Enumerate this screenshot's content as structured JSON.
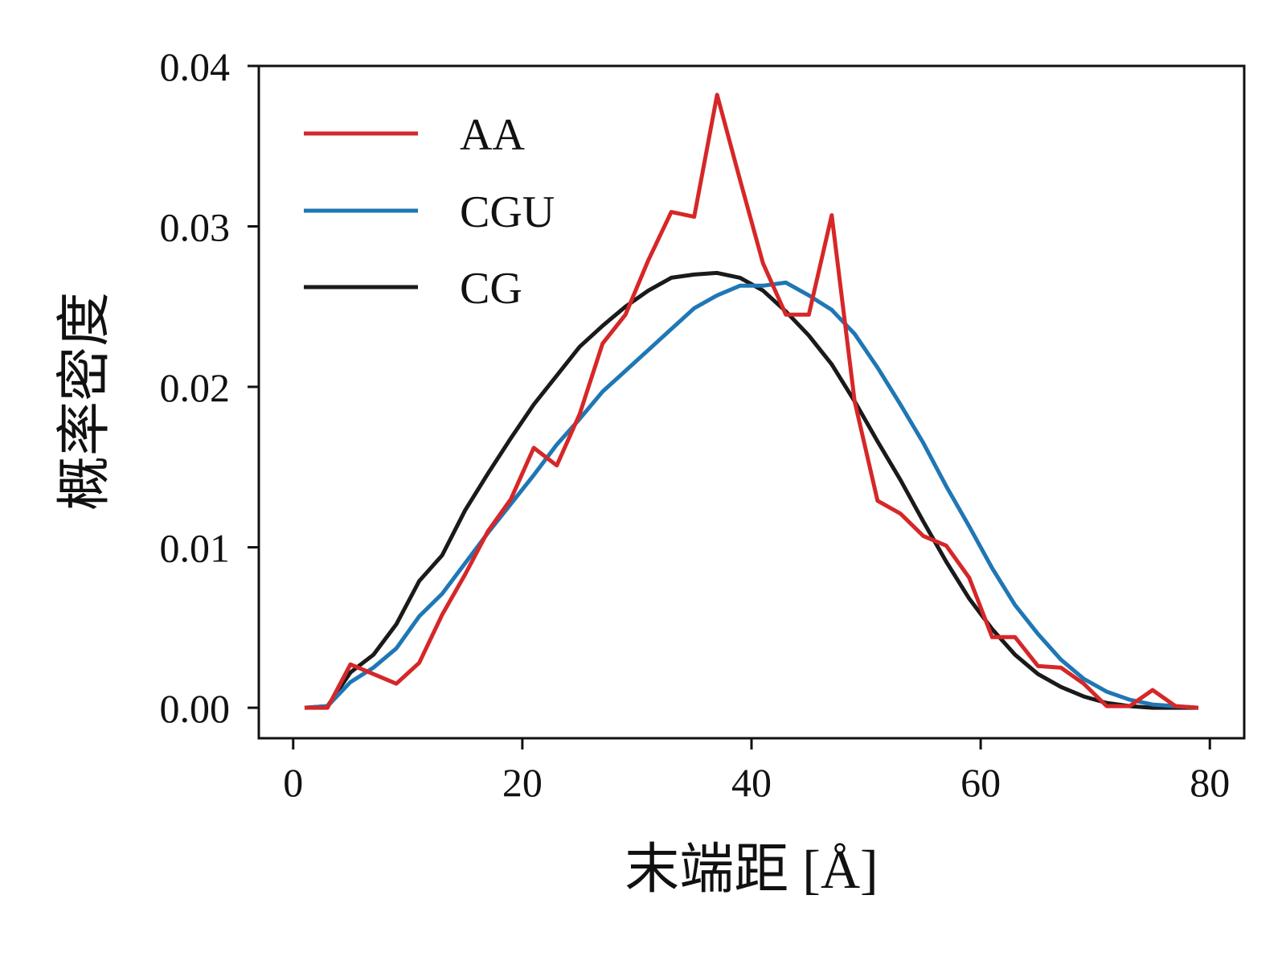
{
  "chart_data": {
    "type": "line",
    "xlabel": "末端距 [Å]",
    "ylabel": "概率密度",
    "xlim": [
      -3,
      83
    ],
    "ylim": [
      -0.0019,
      0.04
    ],
    "x_ticks": [
      0,
      20,
      40,
      60,
      80
    ],
    "x_tick_labels": [
      "0",
      "20",
      "40",
      "60",
      "80"
    ],
    "y_ticks": [
      0.0,
      0.01,
      0.02,
      0.03,
      0.04
    ],
    "y_tick_labels": [
      "0.00",
      "0.01",
      "0.02",
      "0.03",
      "0.04"
    ],
    "grid": false,
    "legend_position": "top-left",
    "series": [
      {
        "name": "AA",
        "color": "#d62728",
        "x": [
          1,
          3,
          5,
          7,
          9,
          11,
          13,
          15,
          17,
          19,
          21,
          23,
          25,
          27,
          29,
          31,
          33,
          35,
          37,
          39,
          41,
          43,
          45,
          47,
          49,
          51,
          53,
          55,
          57,
          59,
          61,
          63,
          65,
          67,
          69,
          71,
          73,
          75,
          77,
          79
        ],
        "values": [
          0.0,
          0.0,
          0.0027,
          0.0021,
          0.0015,
          0.0028,
          0.0058,
          0.0083,
          0.011,
          0.013,
          0.0162,
          0.0151,
          0.0183,
          0.0227,
          0.0245,
          0.0279,
          0.0309,
          0.0306,
          0.0382,
          0.0329,
          0.0277,
          0.0245,
          0.0245,
          0.0307,
          0.0191,
          0.0129,
          0.0121,
          0.0107,
          0.0101,
          0.0081,
          0.0044,
          0.0044,
          0.0026,
          0.0025,
          0.0015,
          0.0001,
          0.0001,
          0.0011,
          0.0001,
          0.0
        ]
      },
      {
        "name": "CGU",
        "color": "#1f77b4",
        "x": [
          1,
          3,
          5,
          7,
          9,
          11,
          13,
          15,
          17,
          19,
          21,
          23,
          25,
          27,
          29,
          31,
          33,
          35,
          37,
          39,
          41,
          43,
          45,
          47,
          49,
          51,
          53,
          55,
          57,
          59,
          61,
          63,
          65,
          67,
          69,
          71,
          73,
          75,
          77,
          79
        ],
        "values": [
          0.0,
          0.0001,
          0.0016,
          0.0025,
          0.0037,
          0.0057,
          0.0071,
          0.009,
          0.0109,
          0.0127,
          0.0145,
          0.0164,
          0.018,
          0.0197,
          0.021,
          0.0223,
          0.0236,
          0.0249,
          0.0257,
          0.0263,
          0.0263,
          0.0265,
          0.0257,
          0.0248,
          0.0233,
          0.0212,
          0.0189,
          0.0165,
          0.0138,
          0.0113,
          0.0087,
          0.0064,
          0.0046,
          0.003,
          0.0018,
          0.001,
          0.0005,
          0.0002,
          0.0001,
          0.0
        ]
      },
      {
        "name": "CG",
        "color": "#1a1a1a",
        "x": [
          1,
          3,
          5,
          7,
          9,
          11,
          13,
          15,
          17,
          19,
          21,
          23,
          25,
          27,
          29,
          31,
          33,
          35,
          37,
          39,
          41,
          43,
          45,
          47,
          49,
          51,
          53,
          55,
          57,
          59,
          61,
          63,
          65,
          67,
          69,
          71,
          73,
          75,
          77,
          79
        ],
        "values": [
          0.0,
          0.0001,
          0.0022,
          0.0033,
          0.0052,
          0.0079,
          0.0095,
          0.0123,
          0.0146,
          0.0168,
          0.0189,
          0.0207,
          0.0225,
          0.0238,
          0.025,
          0.026,
          0.0268,
          0.027,
          0.0271,
          0.0268,
          0.026,
          0.0247,
          0.0232,
          0.0214,
          0.0191,
          0.0166,
          0.0142,
          0.0116,
          0.0091,
          0.0068,
          0.0049,
          0.0033,
          0.0021,
          0.0013,
          0.0007,
          0.0003,
          0.0001,
          0.0,
          0.0,
          0.0
        ]
      }
    ]
  }
}
